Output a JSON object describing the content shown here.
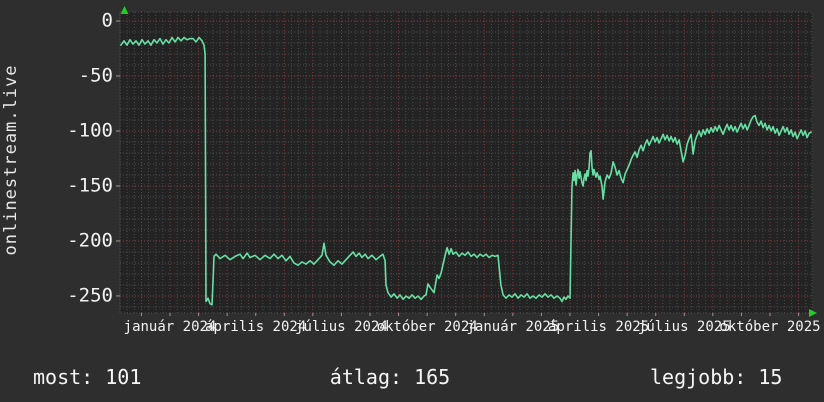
{
  "watermark": "onlinestream.live",
  "stats": {
    "most": {
      "label": "most",
      "value": 101,
      "text": "most: 101"
    },
    "atlag": {
      "label": "átlag",
      "value": 165,
      "text": "átlag: 165"
    },
    "legjobb": {
      "label": "legjobb",
      "value": 15,
      "text": "legjobb: 15"
    }
  },
  "colors": {
    "background": "#2e2e2e",
    "plot_background": "#232323",
    "line": "#66e0a3",
    "grid_major": "#8b3a3a",
    "grid_minor": "#4a4a4a",
    "axis_arrow": "#22cc22",
    "tick_mark": "#999999",
    "text": "#f2f2f2"
  },
  "chart_data": {
    "type": "line",
    "title": "",
    "xlabel": "",
    "ylabel": "",
    "x_unit": "months since january 2024",
    "x_range": [
      -1.75,
      22.47
    ],
    "y_range": [
      -265.5,
      8.2
    ],
    "grid": {
      "x_major_step_months": 1,
      "x_minor_step_months": 0.25,
      "y_major_step": 50,
      "y_minor_step": 10
    },
    "x_ticks": [
      {
        "m": 0,
        "label": "január 2024"
      },
      {
        "m": 3,
        "label": "április 2024"
      },
      {
        "m": 6,
        "label": "július 2024"
      },
      {
        "m": 9,
        "label": "október 2024"
      },
      {
        "m": 12,
        "label": "január 2025"
      },
      {
        "m": 15,
        "label": "április 2025"
      },
      {
        "m": 18,
        "label": "július 2025"
      },
      {
        "m": 21,
        "label": "október 2025"
      }
    ],
    "y_ticks": [
      {
        "v": 0,
        "label": "0"
      },
      {
        "v": -50,
        "label": "-50"
      },
      {
        "v": -100,
        "label": "-100"
      },
      {
        "v": -150,
        "label": "-150"
      },
      {
        "v": -200,
        "label": "-200"
      },
      {
        "v": -250,
        "label": "-250"
      }
    ],
    "points": [
      [
        -1.72,
        -22
      ],
      [
        -1.61,
        -18
      ],
      [
        -1.51,
        -22
      ],
      [
        -1.4,
        -17
      ],
      [
        -1.3,
        -21
      ],
      [
        -1.19,
        -18
      ],
      [
        -1.09,
        -22
      ],
      [
        -0.98,
        -17
      ],
      [
        -0.88,
        -21
      ],
      [
        -0.77,
        -18
      ],
      [
        -0.67,
        -22
      ],
      [
        -0.56,
        -17
      ],
      [
        -0.46,
        -20
      ],
      [
        -0.35,
        -16
      ],
      [
        -0.25,
        -21
      ],
      [
        -0.14,
        -17
      ],
      [
        -0.04,
        -20
      ],
      [
        0.07,
        -15
      ],
      [
        0.18,
        -19
      ],
      [
        0.28,
        -15
      ],
      [
        0.39,
        -18
      ],
      [
        0.49,
        -15
      ],
      [
        0.6,
        -17
      ],
      [
        0.7,
        -16
      ],
      [
        0.81,
        -16
      ],
      [
        0.91,
        -19
      ],
      [
        1.02,
        -15
      ],
      [
        1.12,
        -18
      ],
      [
        1.19,
        -22
      ],
      [
        1.23,
        -30
      ],
      [
        1.26,
        -255
      ],
      [
        1.33,
        -252
      ],
      [
        1.4,
        -257
      ],
      [
        1.47,
        -258
      ],
      [
        1.51,
        -235
      ],
      [
        1.54,
        -214
      ],
      [
        1.61,
        -212
      ],
      [
        1.75,
        -216
      ],
      [
        1.93,
        -213
      ],
      [
        2.1,
        -217
      ],
      [
        2.28,
        -214
      ],
      [
        2.45,
        -212
      ],
      [
        2.56,
        -216
      ],
      [
        2.7,
        -211
      ],
      [
        2.8,
        -215
      ],
      [
        2.98,
        -213
      ],
      [
        3.15,
        -217
      ],
      [
        3.33,
        -213
      ],
      [
        3.5,
        -216
      ],
      [
        3.64,
        -212
      ],
      [
        3.78,
        -216
      ],
      [
        3.92,
        -213
      ],
      [
        4.06,
        -218
      ],
      [
        4.2,
        -214
      ],
      [
        4.34,
        -220
      ],
      [
        4.48,
        -222
      ],
      [
        4.62,
        -219
      ],
      [
        4.76,
        -221
      ],
      [
        4.9,
        -218
      ],
      [
        5.04,
        -221
      ],
      [
        5.18,
        -217
      ],
      [
        5.32,
        -213
      ],
      [
        5.39,
        -202
      ],
      [
        5.46,
        -213
      ],
      [
        5.6,
        -219
      ],
      [
        5.74,
        -222
      ],
      [
        5.88,
        -218
      ],
      [
        6.02,
        -221
      ],
      [
        6.16,
        -217
      ],
      [
        6.3,
        -213
      ],
      [
        6.41,
        -210
      ],
      [
        6.51,
        -214
      ],
      [
        6.62,
        -211
      ],
      [
        6.72,
        -215
      ],
      [
        6.83,
        -212
      ],
      [
        6.93,
        -216
      ],
      [
        7.07,
        -213
      ],
      [
        7.21,
        -217
      ],
      [
        7.35,
        -214
      ],
      [
        7.45,
        -212
      ],
      [
        7.53,
        -218
      ],
      [
        7.56,
        -240
      ],
      [
        7.63,
        -247
      ],
      [
        7.74,
        -251
      ],
      [
        7.84,
        -248
      ],
      [
        7.95,
        -252
      ],
      [
        8.05,
        -249
      ],
      [
        8.16,
        -253
      ],
      [
        8.26,
        -250
      ],
      [
        8.37,
        -252
      ],
      [
        8.47,
        -249
      ],
      [
        8.58,
        -252
      ],
      [
        8.68,
        -250
      ],
      [
        8.79,
        -253
      ],
      [
        8.89,
        -250
      ],
      [
        8.96,
        -249
      ],
      [
        9.03,
        -239
      ],
      [
        9.1,
        -242
      ],
      [
        9.24,
        -247
      ],
      [
        9.35,
        -231
      ],
      [
        9.42,
        -234
      ],
      [
        9.49,
        -229
      ],
      [
        9.63,
        -213
      ],
      [
        9.7,
        -206
      ],
      [
        9.77,
        -212
      ],
      [
        9.84,
        -207
      ],
      [
        9.91,
        -212
      ],
      [
        10.01,
        -210
      ],
      [
        10.12,
        -214
      ],
      [
        10.22,
        -211
      ],
      [
        10.33,
        -213
      ],
      [
        10.43,
        -210
      ],
      [
        10.54,
        -214
      ],
      [
        10.64,
        -212
      ],
      [
        10.75,
        -215
      ],
      [
        10.85,
        -212
      ],
      [
        10.96,
        -214
      ],
      [
        11.06,
        -212
      ],
      [
        11.17,
        -215
      ],
      [
        11.27,
        -213
      ],
      [
        11.38,
        -214
      ],
      [
        11.48,
        -213
      ],
      [
        11.58,
        -240
      ],
      [
        11.66,
        -249
      ],
      [
        11.76,
        -252
      ],
      [
        11.87,
        -249
      ],
      [
        11.97,
        -251
      ],
      [
        12.08,
        -248
      ],
      [
        12.18,
        -252
      ],
      [
        12.29,
        -249
      ],
      [
        12.39,
        -251
      ],
      [
        12.5,
        -248
      ],
      [
        12.6,
        -252
      ],
      [
        12.71,
        -250
      ],
      [
        12.81,
        -252
      ],
      [
        12.92,
        -249
      ],
      [
        13.02,
        -251
      ],
      [
        13.13,
        -248
      ],
      [
        13.23,
        -251
      ],
      [
        13.34,
        -249
      ],
      [
        13.44,
        -252
      ],
      [
        13.55,
        -250
      ],
      [
        13.65,
        -252
      ],
      [
        13.72,
        -255
      ],
      [
        13.79,
        -251
      ],
      [
        13.86,
        -253
      ],
      [
        13.93,
        -250
      ],
      [
        14.0,
        -252
      ],
      [
        14.07,
        -150
      ],
      [
        14.11,
        -138
      ],
      [
        14.14,
        -145
      ],
      [
        14.18,
        -136
      ],
      [
        14.21,
        -149
      ],
      [
        14.25,
        -140
      ],
      [
        14.28,
        -135
      ],
      [
        14.32,
        -143
      ],
      [
        14.35,
        -137
      ],
      [
        14.42,
        -147
      ],
      [
        14.46,
        -150
      ],
      [
        14.49,
        -143
      ],
      [
        14.53,
        -139
      ],
      [
        14.56,
        -145
      ],
      [
        14.6,
        -136
      ],
      [
        14.63,
        -141
      ],
      [
        14.67,
        -133
      ],
      [
        14.7,
        -120
      ],
      [
        14.74,
        -118
      ],
      [
        14.77,
        -133
      ],
      [
        14.81,
        -140
      ],
      [
        14.84,
        -135
      ],
      [
        14.88,
        -139
      ],
      [
        14.91,
        -142
      ],
      [
        14.95,
        -138
      ],
      [
        15.02,
        -144
      ],
      [
        15.05,
        -141
      ],
      [
        15.12,
        -150
      ],
      [
        15.16,
        -162
      ],
      [
        15.19,
        -155
      ],
      [
        15.23,
        -146
      ],
      [
        15.3,
        -140
      ],
      [
        15.37,
        -143
      ],
      [
        15.44,
        -138
      ],
      [
        15.51,
        -128
      ],
      [
        15.58,
        -133
      ],
      [
        15.65,
        -140
      ],
      [
        15.72,
        -136
      ],
      [
        15.79,
        -143
      ],
      [
        15.86,
        -147
      ],
      [
        15.93,
        -139
      ],
      [
        16.0,
        -135
      ],
      [
        16.07,
        -131
      ],
      [
        16.14,
        -126
      ],
      [
        16.21,
        -122
      ],
      [
        16.28,
        -119
      ],
      [
        16.35,
        -124
      ],
      [
        16.42,
        -117
      ],
      [
        16.49,
        -113
      ],
      [
        16.56,
        -118
      ],
      [
        16.63,
        -112
      ],
      [
        16.7,
        -108
      ],
      [
        16.77,
        -113
      ],
      [
        16.84,
        -109
      ],
      [
        16.91,
        -105
      ],
      [
        16.98,
        -110
      ],
      [
        17.05,
        -106
      ],
      [
        17.12,
        -111
      ],
      [
        17.19,
        -107
      ],
      [
        17.26,
        -103
      ],
      [
        17.33,
        -108
      ],
      [
        17.4,
        -104
      ],
      [
        17.47,
        -109
      ],
      [
        17.54,
        -105
      ],
      [
        17.61,
        -110
      ],
      [
        17.68,
        -106
      ],
      [
        17.75,
        -112
      ],
      [
        17.82,
        -108
      ],
      [
        17.89,
        -118
      ],
      [
        17.96,
        -128
      ],
      [
        18.03,
        -122
      ],
      [
        18.1,
        -112
      ],
      [
        18.17,
        -107
      ],
      [
        18.24,
        -103
      ],
      [
        18.31,
        -121
      ],
      [
        18.38,
        -109
      ],
      [
        18.45,
        -104
      ],
      [
        18.52,
        -100
      ],
      [
        18.59,
        -105
      ],
      [
        18.66,
        -99
      ],
      [
        18.73,
        -103
      ],
      [
        18.8,
        -98
      ],
      [
        18.87,
        -102
      ],
      [
        18.94,
        -97
      ],
      [
        19.01,
        -101
      ],
      [
        19.08,
        -96
      ],
      [
        19.15,
        -100
      ],
      [
        19.22,
        -95
      ],
      [
        19.29,
        -99
      ],
      [
        19.36,
        -103
      ],
      [
        19.43,
        -98
      ],
      [
        19.5,
        -94
      ],
      [
        19.57,
        -99
      ],
      [
        19.64,
        -95
      ],
      [
        19.71,
        -100
      ],
      [
        19.78,
        -96
      ],
      [
        19.85,
        -101
      ],
      [
        19.92,
        -97
      ],
      [
        19.99,
        -93
      ],
      [
        20.06,
        -98
      ],
      [
        20.13,
        -94
      ],
      [
        20.2,
        -99
      ],
      [
        20.27,
        -95
      ],
      [
        20.34,
        -90
      ],
      [
        20.41,
        -87
      ],
      [
        20.48,
        -86
      ],
      [
        20.55,
        -92
      ],
      [
        20.62,
        -95
      ],
      [
        20.69,
        -91
      ],
      [
        20.76,
        -97
      ],
      [
        20.83,
        -93
      ],
      [
        20.9,
        -99
      ],
      [
        20.97,
        -95
      ],
      [
        21.04,
        -100
      ],
      [
        21.11,
        -96
      ],
      [
        21.18,
        -102
      ],
      [
        21.25,
        -98
      ],
      [
        21.32,
        -104
      ],
      [
        21.39,
        -100
      ],
      [
        21.46,
        -96
      ],
      [
        21.53,
        -101
      ],
      [
        21.6,
        -97
      ],
      [
        21.67,
        -103
      ],
      [
        21.74,
        -99
      ],
      [
        21.81,
        -105
      ],
      [
        21.88,
        -101
      ],
      [
        21.95,
        -107
      ],
      [
        22.02,
        -103
      ],
      [
        22.09,
        -99
      ],
      [
        22.16,
        -104
      ],
      [
        22.23,
        -100
      ],
      [
        22.3,
        -106
      ],
      [
        22.37,
        -102
      ],
      [
        22.44,
        -101
      ]
    ]
  }
}
